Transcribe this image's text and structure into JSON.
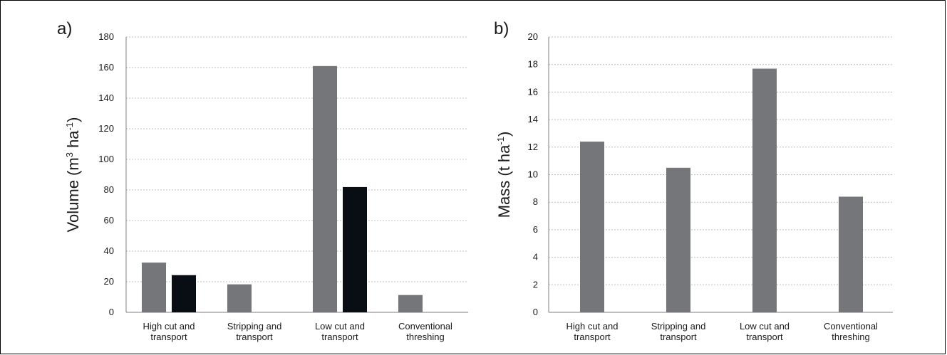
{
  "chart_data": [
    {
      "type": "bar",
      "panel_label": "a)",
      "ylabel": "Volume (m",
      "ylabel_sup1": "3",
      "ylabel_mid": " ha",
      "ylabel_sup2": "-1",
      "ylabel_end": ")",
      "ylim": [
        0,
        180
      ],
      "yticks": [
        0,
        20,
        40,
        60,
        80,
        100,
        120,
        140,
        160,
        180
      ],
      "grid": true,
      "categories": [
        [
          "High cut and",
          "transport"
        ],
        [
          "Stripping and",
          "transport"
        ],
        [
          "Low cut and",
          "transport"
        ],
        [
          "Conventional",
          "threshing"
        ]
      ],
      "series": [
        {
          "values": [
            32.5,
            18.3,
            161.0,
            11.3
          ],
          "color": "#75767a"
        },
        {
          "values": [
            24.3,
            null,
            81.9,
            null
          ],
          "color": "#080e14"
        }
      ]
    },
    {
      "type": "bar",
      "panel_label": "b)",
      "ylabel": "Mass (t ha",
      "ylabel_sup1": "-1",
      "ylabel_end": ")",
      "ylim": [
        0,
        20
      ],
      "yticks": [
        0,
        2,
        4,
        6,
        8,
        10,
        12,
        14,
        16,
        18,
        20
      ],
      "grid": true,
      "categories": [
        [
          "High cut and",
          "transport"
        ],
        [
          "Stripping and",
          "transport"
        ],
        [
          "Low cut and",
          "transport"
        ],
        [
          "Conventional",
          "threshing"
        ]
      ],
      "series": [
        {
          "values": [
            12.4,
            10.5,
            17.7,
            8.4
          ],
          "color": "#75767a"
        }
      ]
    }
  ]
}
